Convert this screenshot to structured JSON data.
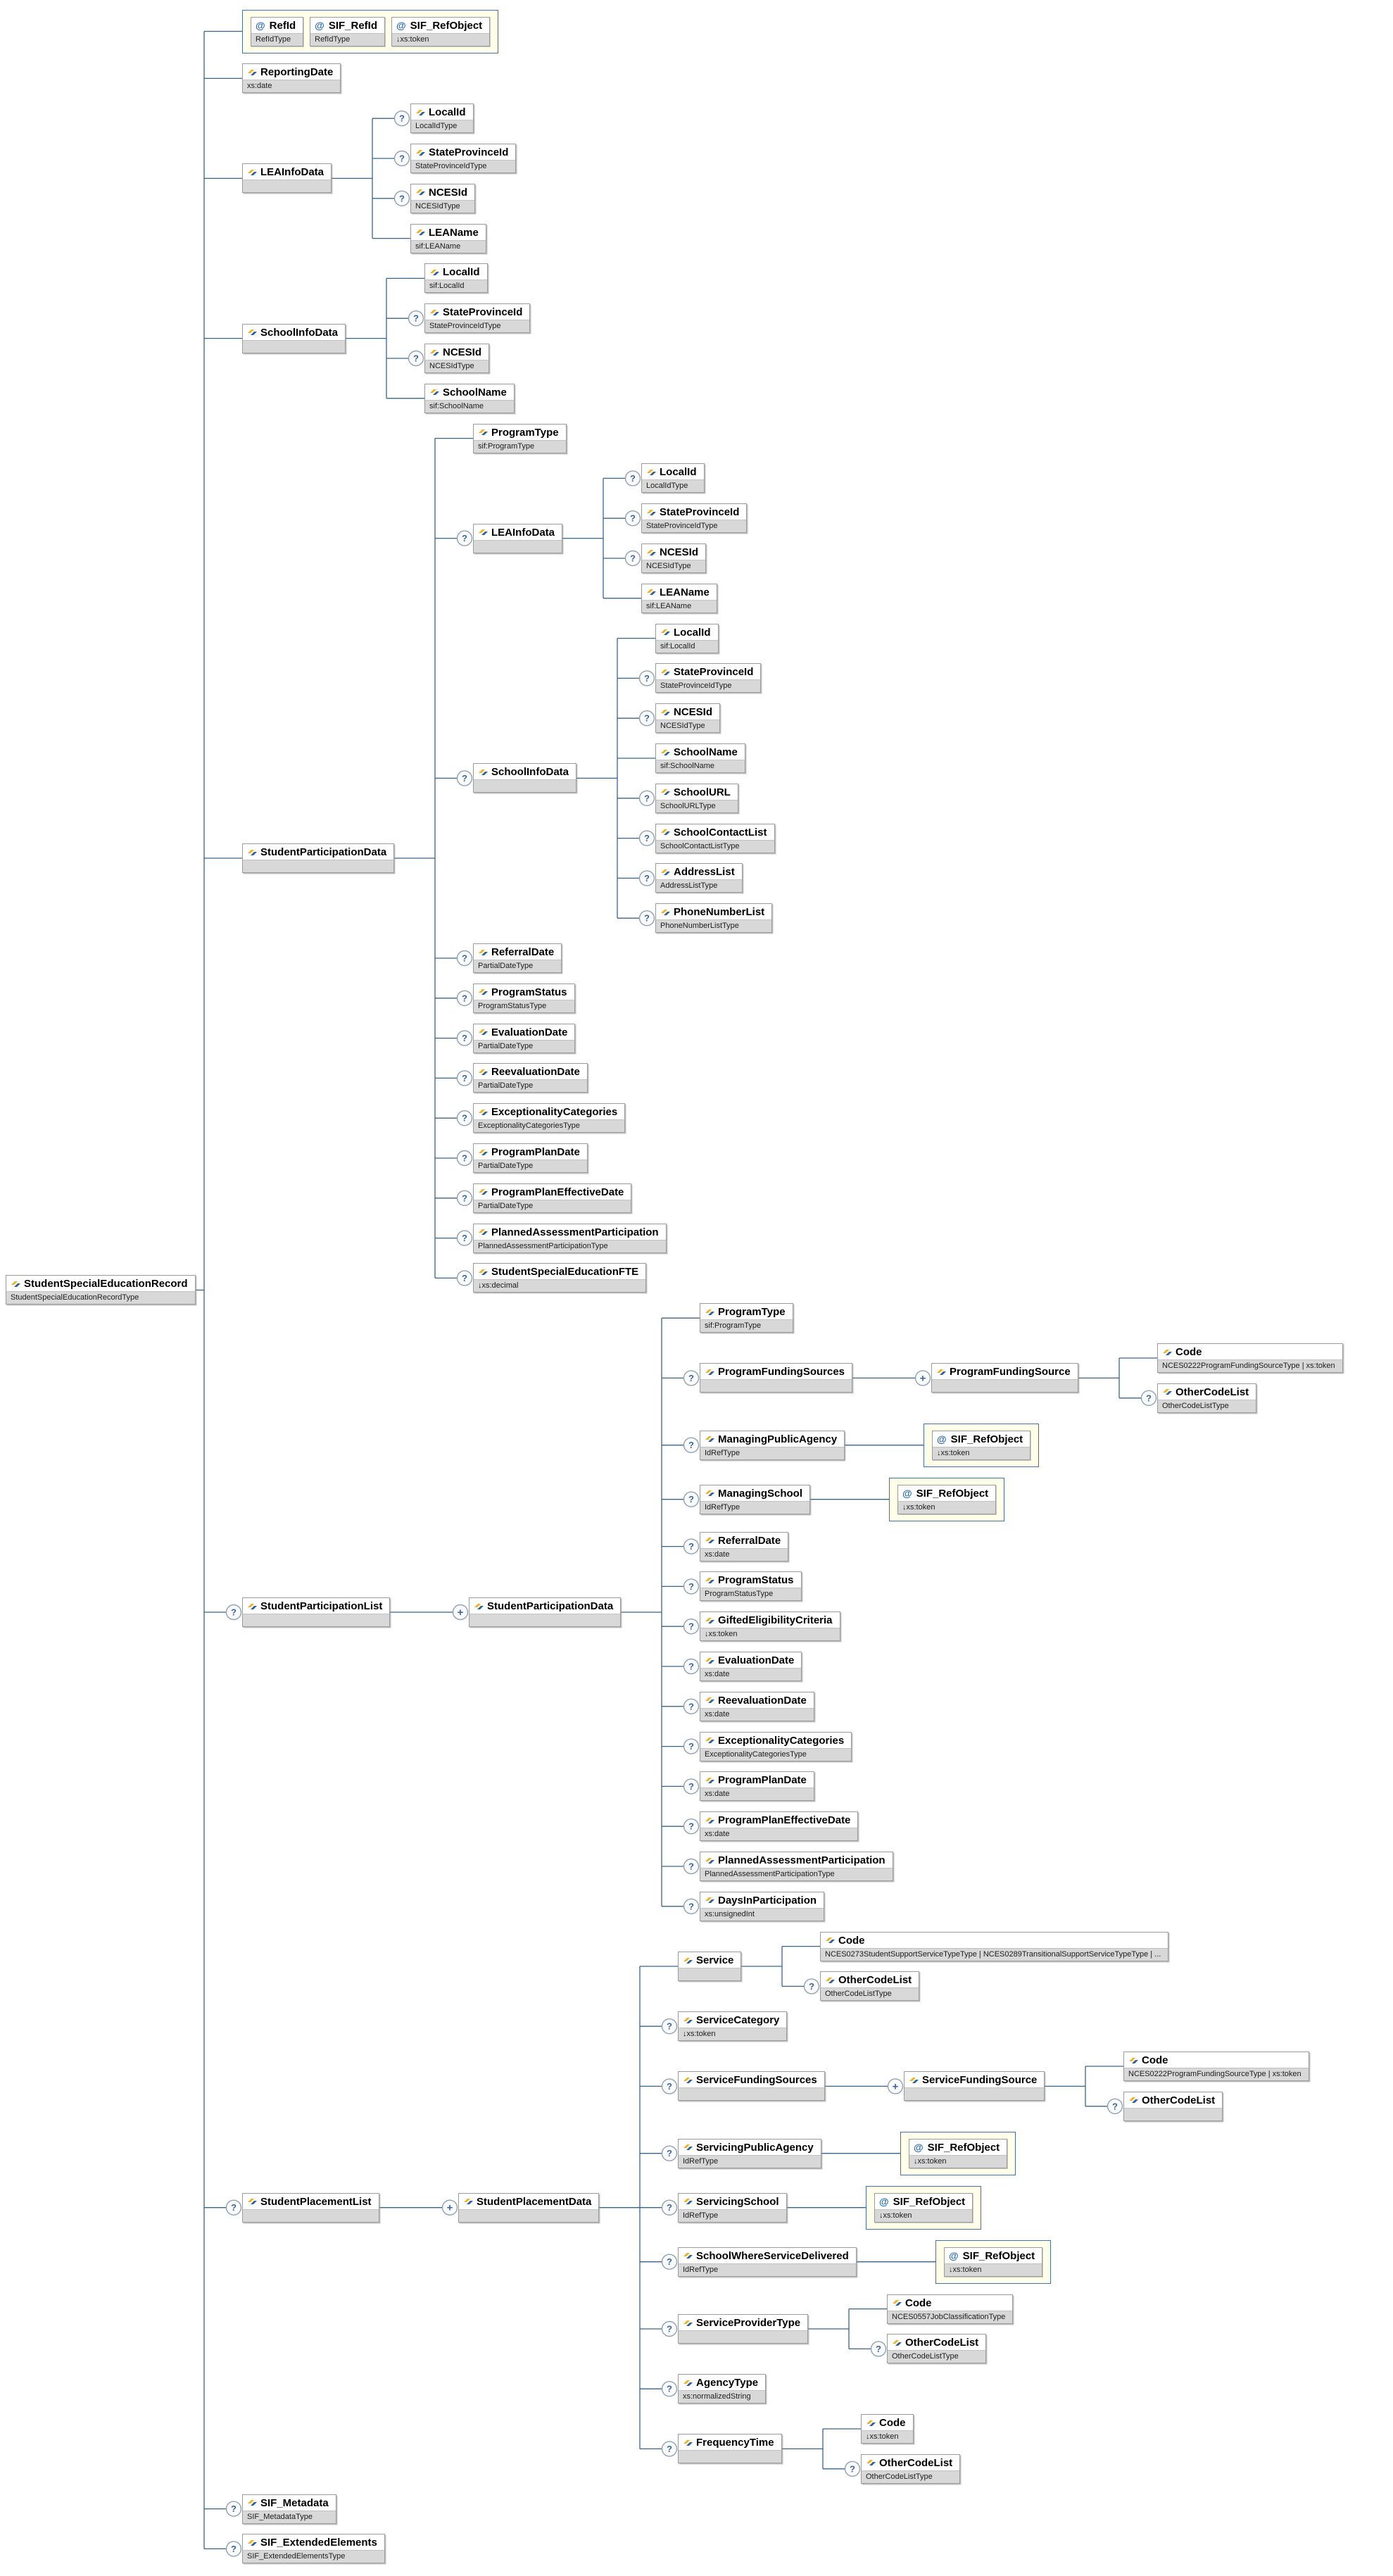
{
  "style": {
    "connector_color": "#3a6388",
    "box_border": "#9b9b9b",
    "type_bar_bg": "#d8d8d8",
    "attr_group_bg": "#fefee9",
    "attr_group_border": "#44719f",
    "occurs_circle_stroke": "#8da1b5",
    "occurs_circle_fill": "#fbfbfb",
    "occurs_symbol_color": "#3a67a0",
    "element_icon_gold": "#f2b01e",
    "element_icon_blue": "#2d5f9b",
    "attribute_icon_glyph": "@"
  },
  "diagram": {
    "root": {
      "n": "StudentSpecialEducationRecord",
      "t": "StudentSpecialEducationRecordType",
      "c": [
        {
          "k": "ag",
          "a": [
            {
              "n": "RefId",
              "t": "RefIdType"
            },
            {
              "n": "SIF_RefId",
              "t": "RefIdType"
            },
            {
              "n": "SIF_RefObject",
              "t": "↓xs:token"
            }
          ]
        },
        {
          "n": "ReportingDate",
          "t": "xs:date"
        },
        {
          "n": "LEAInfoData",
          "t": "",
          "c": [
            {
              "n": "LocalId",
              "t": "LocalIdType",
              "o": "?"
            },
            {
              "n": "StateProvinceId",
              "t": "StateProvinceIdType",
              "o": "?"
            },
            {
              "n": "NCESId",
              "t": "NCESIdType",
              "o": "?"
            },
            {
              "n": "LEAName",
              "t": "sif:LEAName"
            }
          ]
        },
        {
          "n": "SchoolInfoData",
          "t": "",
          "c": [
            {
              "n": "LocalId",
              "t": "sif:LocalId"
            },
            {
              "n": "StateProvinceId",
              "t": "StateProvinceIdType",
              "o": "?"
            },
            {
              "n": "NCESId",
              "t": "NCESIdType",
              "o": "?"
            },
            {
              "n": "SchoolName",
              "t": "sif:SchoolName"
            }
          ]
        },
        {
          "n": "StudentParticipationData",
          "t": "",
          "c": [
            {
              "n": "ProgramType",
              "t": "sif:ProgramType"
            },
            {
              "n": "LEAInfoData",
              "t": "",
              "o": "?",
              "c": [
                {
                  "n": "LocalId",
                  "t": "LocalIdType",
                  "o": "?"
                },
                {
                  "n": "StateProvinceId",
                  "t": "StateProvinceIdType",
                  "o": "?"
                },
                {
                  "n": "NCESId",
                  "t": "NCESIdType",
                  "o": "?"
                },
                {
                  "n": "LEAName",
                  "t": "sif:LEAName"
                }
              ]
            },
            {
              "n": "SchoolInfoData",
              "t": "",
              "o": "?",
              "c": [
                {
                  "n": "LocalId",
                  "t": "sif:LocalId"
                },
                {
                  "n": "StateProvinceId",
                  "t": "StateProvinceIdType",
                  "o": "?"
                },
                {
                  "n": "NCESId",
                  "t": "NCESIdType",
                  "o": "?"
                },
                {
                  "n": "SchoolName",
                  "t": "sif:SchoolName"
                },
                {
                  "n": "SchoolURL",
                  "t": "SchoolURLType",
                  "o": "?"
                },
                {
                  "n": "SchoolContactList",
                  "t": "SchoolContactListType",
                  "o": "?"
                },
                {
                  "n": "AddressList",
                  "t": "AddressListType",
                  "o": "?"
                },
                {
                  "n": "PhoneNumberList",
                  "t": "PhoneNumberListType",
                  "o": "?"
                }
              ]
            },
            {
              "n": "ReferralDate",
              "t": "PartialDateType",
              "o": "?"
            },
            {
              "n": "ProgramStatus",
              "t": "ProgramStatusType",
              "o": "?"
            },
            {
              "n": "EvaluationDate",
              "t": "PartialDateType",
              "o": "?"
            },
            {
              "n": "ReevaluationDate",
              "t": "PartialDateType",
              "o": "?"
            },
            {
              "n": "ExceptionalityCategories",
              "t": "ExceptionalityCategoriesType",
              "o": "?"
            },
            {
              "n": "ProgramPlanDate",
              "t": "PartialDateType",
              "o": "?"
            },
            {
              "n": "ProgramPlanEffectiveDate",
              "t": "PartialDateType",
              "o": "?"
            },
            {
              "n": "PlannedAssessmentParticipation",
              "t": "PlannedAssessmentParticipationType",
              "o": "?"
            },
            {
              "n": "StudentSpecialEducationFTE",
              "t": "↓xs:decimal",
              "o": "?"
            }
          ]
        },
        {
          "n": "StudentParticipationList",
          "t": "",
          "o": "?",
          "c": [
            {
              "n": "StudentParticipationData",
              "t": "",
              "o": "+",
              "c": [
                {
                  "n": "ProgramType",
                  "t": "sif:ProgramType"
                },
                {
                  "n": "ProgramFundingSources",
                  "t": "",
                  "o": "?",
                  "c": [
                    {
                      "n": "ProgramFundingSource",
                      "t": "",
                      "o": "+",
                      "c": [
                        {
                          "n": "Code",
                          "t": "NCES0222ProgramFundingSourceType | xs:token"
                        },
                        {
                          "n": "OtherCodeList",
                          "t": "OtherCodeListType",
                          "o": "?"
                        }
                      ]
                    }
                  ]
                },
                {
                  "n": "ManagingPublicAgency",
                  "t": "IdRefType",
                  "o": "?",
                  "c": [
                    {
                      "k": "ag",
                      "a": [
                        {
                          "n": "SIF_RefObject",
                          "t": "↓xs:token"
                        }
                      ]
                    }
                  ]
                },
                {
                  "n": "ManagingSchool",
                  "t": "IdRefType",
                  "o": "?",
                  "c": [
                    {
                      "k": "ag",
                      "a": [
                        {
                          "n": "SIF_RefObject",
                          "t": "↓xs:token"
                        }
                      ]
                    }
                  ]
                },
                {
                  "n": "ReferralDate",
                  "t": "xs:date",
                  "o": "?"
                },
                {
                  "n": "ProgramStatus",
                  "t": "ProgramStatusType",
                  "o": "?"
                },
                {
                  "n": "GiftedEligibilityCriteria",
                  "t": "↓xs:token",
                  "o": "?"
                },
                {
                  "n": "EvaluationDate",
                  "t": "xs:date",
                  "o": "?"
                },
                {
                  "n": "ReevaluationDate",
                  "t": "xs:date",
                  "o": "?"
                },
                {
                  "n": "ExceptionalityCategories",
                  "t": "ExceptionalityCategoriesType",
                  "o": "?"
                },
                {
                  "n": "ProgramPlanDate",
                  "t": "xs:date",
                  "o": "?"
                },
                {
                  "n": "ProgramPlanEffectiveDate",
                  "t": "xs:date",
                  "o": "?"
                },
                {
                  "n": "PlannedAssessmentParticipation",
                  "t": "PlannedAssessmentParticipationType",
                  "o": "?"
                },
                {
                  "n": "DaysInParticipation",
                  "t": "xs:unsignedInt",
                  "o": "?"
                }
              ]
            }
          ]
        },
        {
          "n": "StudentPlacementList",
          "t": "",
          "o": "?",
          "c": [
            {
              "n": "StudentPlacementData",
              "t": "",
              "o": "+",
              "c": [
                {
                  "n": "Service",
                  "t": "",
                  "c": [
                    {
                      "n": "Code",
                      "t": "NCES0273StudentSupportServiceTypeType | NCES0289TransitionalSupportServiceTypeType | ..."
                    },
                    {
                      "n": "OtherCodeList",
                      "t": "OtherCodeListType",
                      "o": "?"
                    }
                  ]
                },
                {
                  "n": "ServiceCategory",
                  "t": "↓xs:token",
                  "o": "?"
                },
                {
                  "n": "ServiceFundingSources",
                  "t": "",
                  "o": "?",
                  "c": [
                    {
                      "n": "ServiceFundingSource",
                      "t": "",
                      "o": "+",
                      "c": [
                        {
                          "n": "Code",
                          "t": "NCES0222ProgramFundingSourceType | xs:token"
                        },
                        {
                          "n": "OtherCodeList",
                          "t": "",
                          "o": "?"
                        }
                      ]
                    }
                  ]
                },
                {
                  "n": "ServicingPublicAgency",
                  "t": "IdRefType",
                  "o": "?",
                  "c": [
                    {
                      "k": "ag",
                      "a": [
                        {
                          "n": "SIF_RefObject",
                          "t": "↓xs:token"
                        }
                      ]
                    }
                  ]
                },
                {
                  "n": "ServicingSchool",
                  "t": "IdRefType",
                  "o": "?",
                  "c": [
                    {
                      "k": "ag",
                      "a": [
                        {
                          "n": "SIF_RefObject",
                          "t": "↓xs:token"
                        }
                      ]
                    }
                  ]
                },
                {
                  "n": "SchoolWhereServiceDelivered",
                  "t": "IdRefType",
                  "o": "?",
                  "c": [
                    {
                      "k": "ag",
                      "a": [
                        {
                          "n": "SIF_RefObject",
                          "t": "↓xs:token"
                        }
                      ]
                    }
                  ]
                },
                {
                  "n": "ServiceProviderType",
                  "t": "",
                  "o": "?",
                  "c": [
                    {
                      "n": "Code",
                      "t": "NCES0557JobClassificationType"
                    },
                    {
                      "n": "OtherCodeList",
                      "t": "OtherCodeListType",
                      "o": "?"
                    }
                  ]
                },
                {
                  "n": "AgencyType",
                  "t": "xs:normalizedString",
                  "o": "?"
                },
                {
                  "n": "FrequencyTime",
                  "t": "",
                  "o": "?",
                  "c": [
                    {
                      "n": "Code",
                      "t": "↓xs:token"
                    },
                    {
                      "n": "OtherCodeList",
                      "t": "OtherCodeListType",
                      "o": "?"
                    }
                  ]
                }
              ]
            }
          ]
        },
        {
          "n": "SIF_Metadata",
          "t": "SIF_MetadataType",
          "o": "?"
        },
        {
          "n": "SIF_ExtendedElements",
          "t": "SIF_ExtendedElementsType",
          "o": "?"
        }
      ]
    }
  }
}
